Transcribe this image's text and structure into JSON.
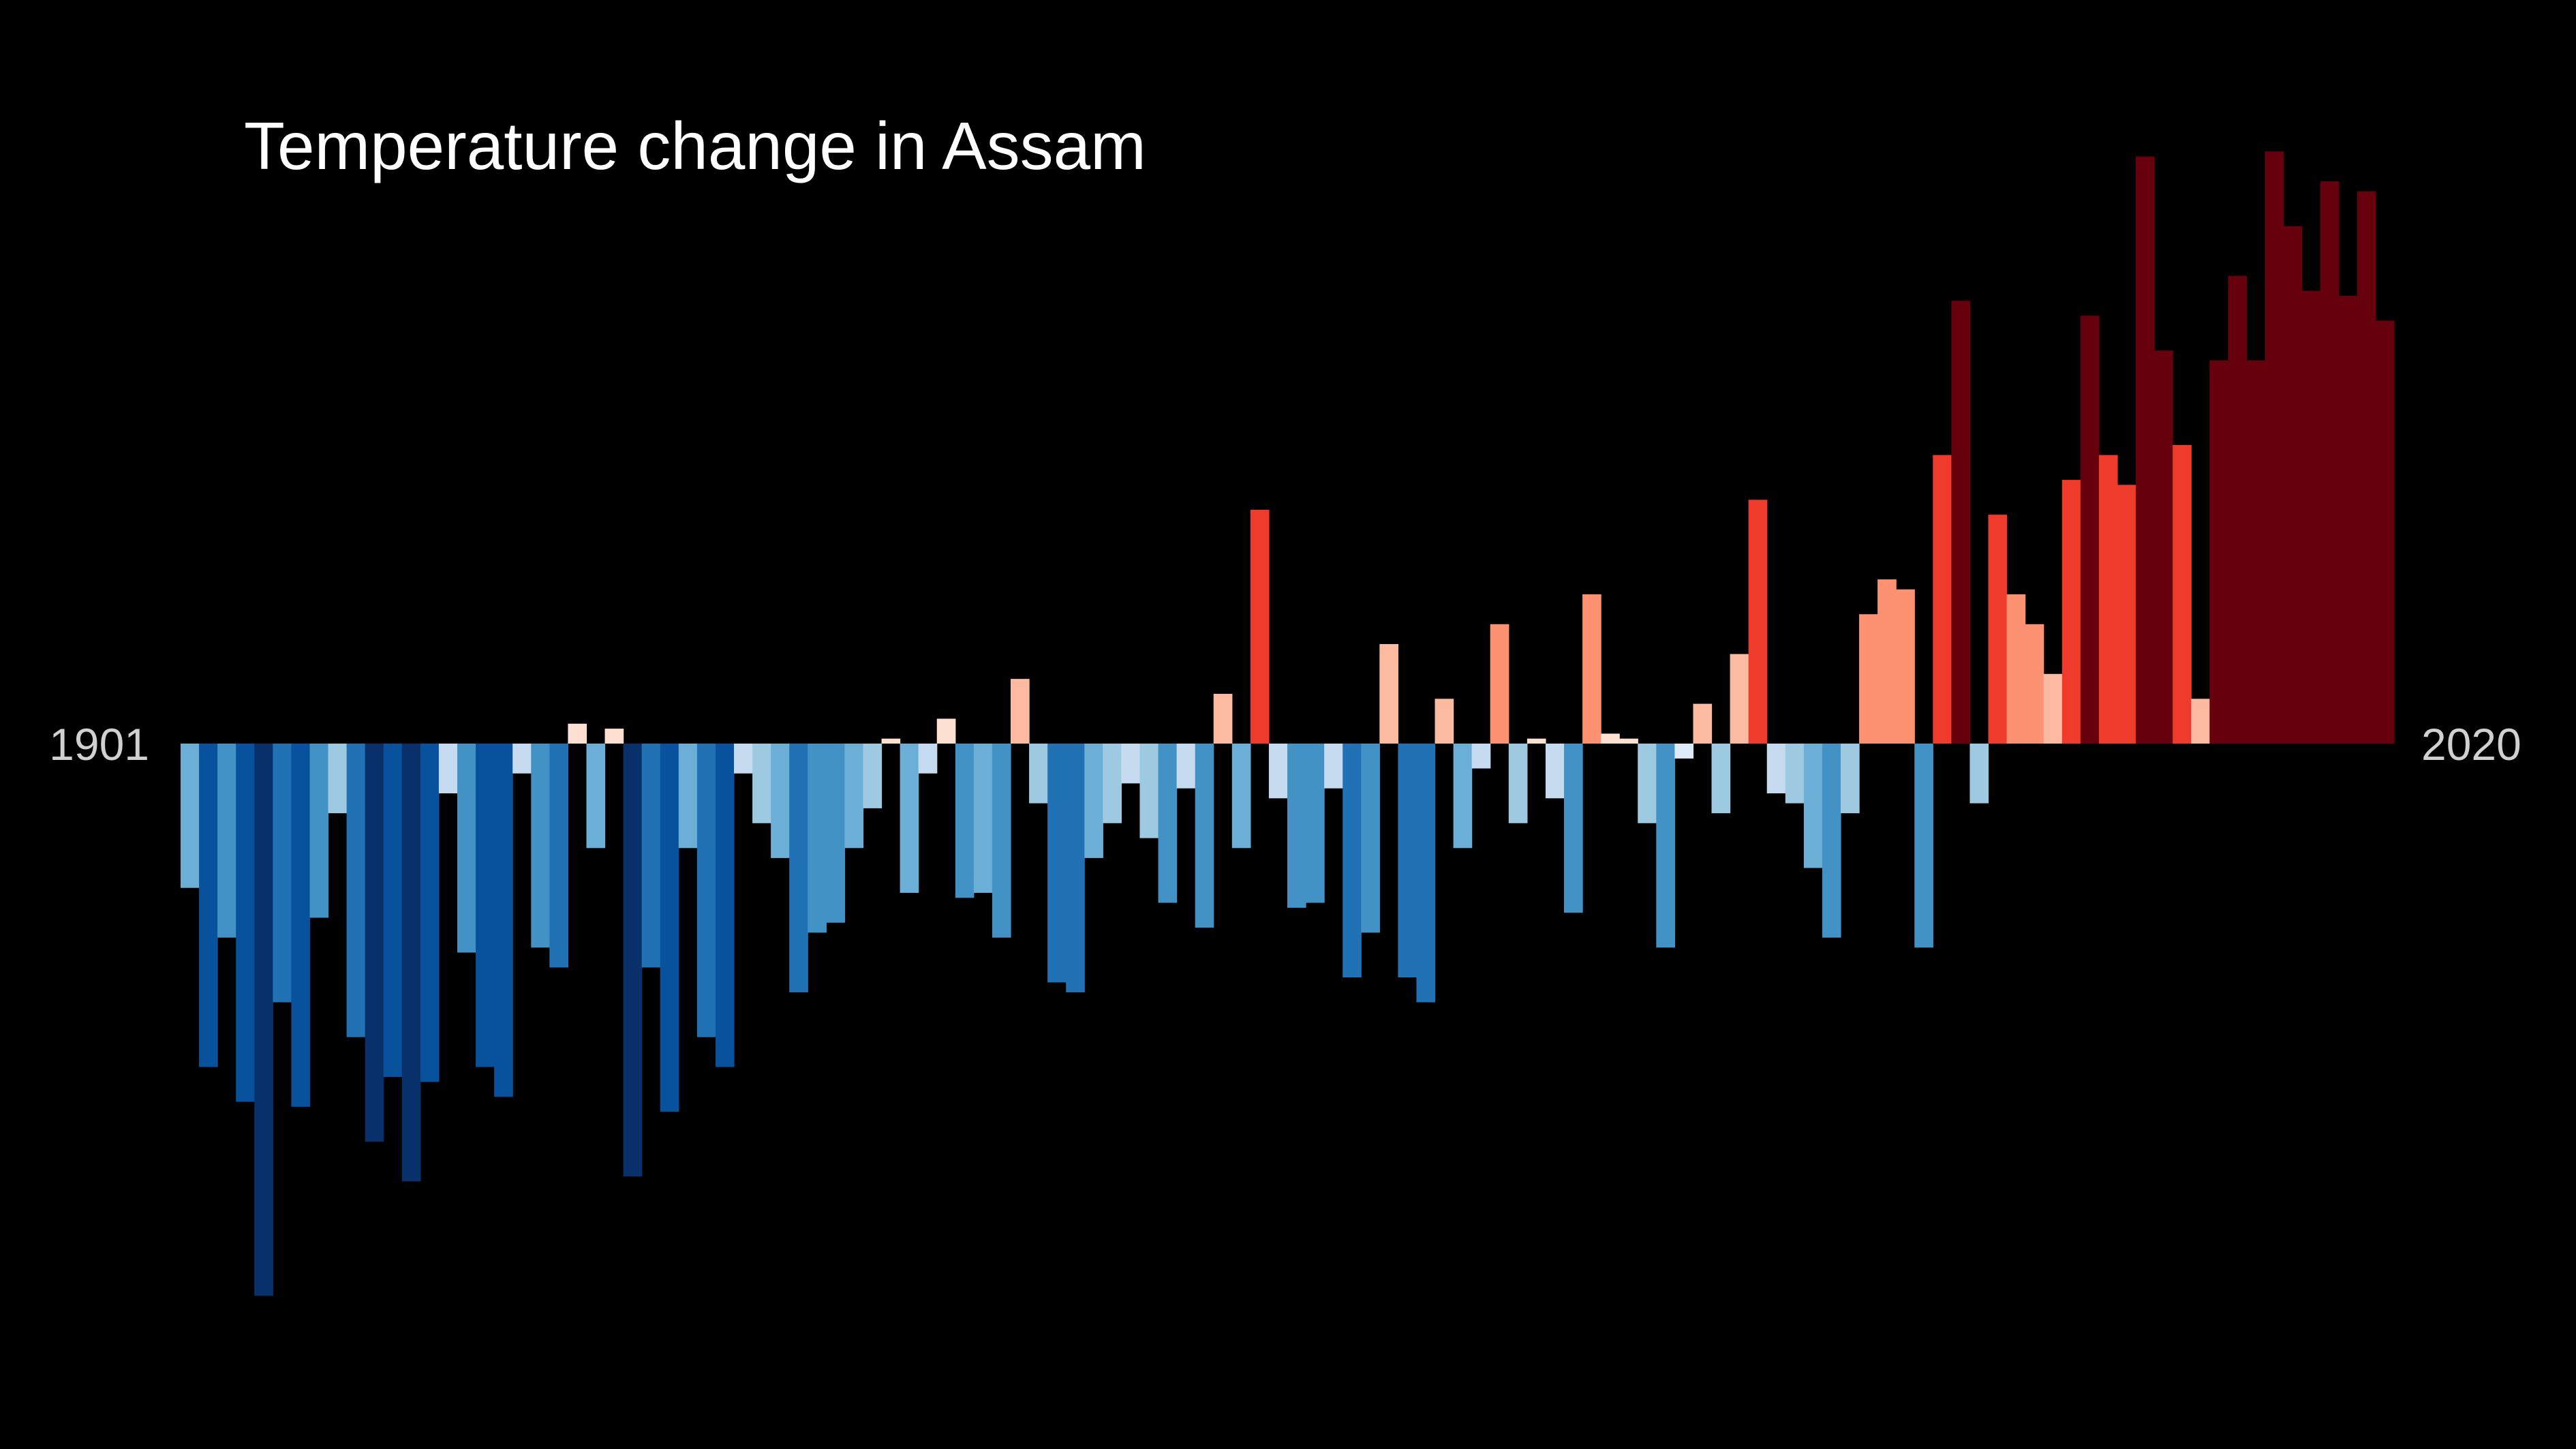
{
  "chart_data": {
    "type": "bar",
    "title": "Temperature change in Assam",
    "start_label": "1901",
    "end_label": "2020",
    "xlabel": "",
    "ylabel": "",
    "grid": false,
    "legend": "none",
    "x_start": 1901,
    "x_end": 2020,
    "units": "relative anomaly (zero baseline = 0)",
    "ylim": [
      -1.1,
      1.22
    ],
    "values": [
      -0.29,
      -0.65,
      -0.39,
      -0.72,
      -1.11,
      -0.52,
      -0.73,
      -0.35,
      -0.14,
      -0.59,
      -0.8,
      -0.67,
      -0.88,
      -0.68,
      -0.1,
      -0.42,
      -0.65,
      -0.71,
      -0.06,
      -0.41,
      -0.45,
      0.04,
      -0.21,
      0.03,
      -0.87,
      -0.45,
      -0.74,
      -0.21,
      -0.59,
      -0.65,
      -0.06,
      -0.16,
      -0.23,
      -0.5,
      -0.38,
      -0.36,
      -0.21,
      -0.13,
      0.01,
      -0.3,
      -0.06,
      0.05,
      -0.31,
      -0.3,
      -0.39,
      0.13,
      -0.12,
      -0.48,
      -0.5,
      -0.23,
      -0.16,
      -0.08,
      -0.19,
      -0.32,
      -0.09,
      -0.37,
      0.1,
      -0.21,
      0.47,
      -0.11,
      -0.33,
      -0.32,
      -0.09,
      -0.47,
      -0.38,
      0.2,
      -0.47,
      -0.52,
      0.09,
      -0.21,
      -0.05,
      0.24,
      -0.16,
      0.01,
      -0.11,
      -0.34,
      0.3,
      0.02,
      0.01,
      -0.16,
      -0.41,
      -0.03,
      0.08,
      -0.14,
      0.18,
      0.49,
      -0.1,
      -0.12,
      -0.25,
      -0.39,
      -0.14,
      0.26,
      0.33,
      0.31,
      -0.41,
      0.58,
      0.89,
      -0.12,
      0.46,
      0.3,
      0.24,
      0.14,
      0.53,
      0.86,
      0.58,
      0.52,
      1.18,
      0.79,
      0.6,
      0.09,
      0.77,
      0.94,
      0.77,
      1.19,
      1.04,
      0.91,
      1.13,
      0.9,
      1.11,
      0.85
    ],
    "colors": {
      "very_cold": "#08306b",
      "cold": "#08519c",
      "medium_cold": "#2171b5",
      "cool": "#4292c6",
      "mild_cool": "#6baed6",
      "slight_cool": "#9ecae1",
      "near_cool": "#c6dbef",
      "near_zero_cool": "#deebf7",
      "near_zero_warm": "#fee0d2",
      "slight_warm": "#fcbba1",
      "mild_warm": "#fc9272",
      "warm": "#fb6a4a",
      "hot": "#ef3b2c",
      "very_hot": "#cb181d",
      "extreme": "#67000d"
    }
  }
}
